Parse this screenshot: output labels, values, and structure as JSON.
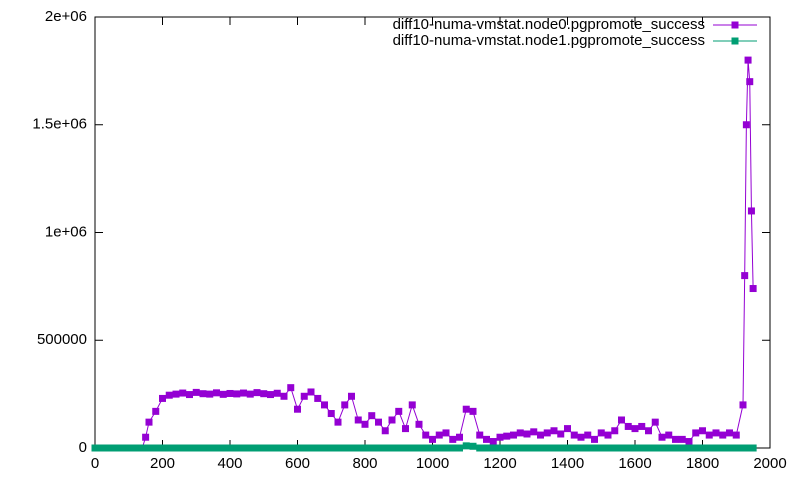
{
  "chart_data": {
    "type": "line",
    "x": [
      0,
      20,
      40,
      60,
      80,
      100,
      120,
      140,
      150,
      160,
      180,
      200,
      220,
      240,
      260,
      280,
      300,
      320,
      340,
      360,
      380,
      400,
      420,
      440,
      460,
      480,
      500,
      520,
      540,
      560,
      580,
      600,
      620,
      640,
      660,
      680,
      700,
      720,
      740,
      760,
      780,
      800,
      820,
      840,
      860,
      880,
      900,
      920,
      940,
      960,
      980,
      1000,
      1020,
      1040,
      1060,
      1080,
      1100,
      1120,
      1140,
      1160,
      1180,
      1200,
      1220,
      1240,
      1260,
      1280,
      1300,
      1320,
      1340,
      1360,
      1380,
      1400,
      1420,
      1440,
      1460,
      1480,
      1500,
      1520,
      1540,
      1560,
      1580,
      1600,
      1620,
      1640,
      1660,
      1680,
      1700,
      1720,
      1740,
      1760,
      1780,
      1800,
      1820,
      1840,
      1860,
      1880,
      1900,
      1920,
      1925,
      1930,
      1935,
      1940,
      1945,
      1950
    ],
    "series": [
      {
        "name": "diff10-numa-vmstat.node0.pgpromote_success",
        "color": "#9400d3",
        "values": [
          0,
          0,
          0,
          0,
          0,
          0,
          0,
          0,
          50000,
          120000,
          170000,
          230000,
          245000,
          250000,
          255000,
          248000,
          258000,
          252000,
          250000,
          256000,
          249000,
          253000,
          251000,
          255000,
          250000,
          257000,
          252000,
          248000,
          254000,
          240000,
          280000,
          180000,
          240000,
          260000,
          230000,
          200000,
          160000,
          120000,
          200000,
          240000,
          130000,
          110000,
          150000,
          120000,
          80000,
          130000,
          170000,
          90000,
          200000,
          110000,
          60000,
          40000,
          60000,
          70000,
          40000,
          50000,
          180000,
          170000,
          60000,
          40000,
          30000,
          50000,
          55000,
          60000,
          70000,
          65000,
          75000,
          60000,
          70000,
          80000,
          65000,
          90000,
          60000,
          50000,
          60000,
          40000,
          70000,
          60000,
          80000,
          130000,
          100000,
          90000,
          100000,
          80000,
          120000,
          50000,
          60000,
          40000,
          40000,
          30000,
          70000,
          80000,
          60000,
          70000,
          60000,
          70000,
          60000,
          200000,
          800000,
          1500000,
          1800000,
          1700000,
          1100000,
          740000
        ]
      },
      {
        "name": "diff10-numa-vmstat.node1.pgpromote_success",
        "color": "#009e73",
        "values": [
          0,
          0,
          0,
          0,
          0,
          0,
          0,
          0,
          0,
          0,
          0,
          0,
          0,
          0,
          0,
          0,
          0,
          0,
          0,
          0,
          0,
          0,
          0,
          0,
          0,
          0,
          0,
          0,
          0,
          0,
          0,
          0,
          0,
          0,
          0,
          0,
          0,
          0,
          0,
          0,
          0,
          0,
          0,
          0,
          0,
          0,
          0,
          0,
          0,
          0,
          0,
          0,
          0,
          0,
          0,
          0,
          10000,
          8000,
          0,
          0,
          0,
          0,
          0,
          0,
          0,
          0,
          0,
          0,
          0,
          0,
          0,
          0,
          0,
          0,
          0,
          0,
          0,
          0,
          0,
          0,
          0,
          0,
          0,
          0,
          0,
          0,
          0,
          0,
          0,
          0,
          0,
          0,
          0,
          0,
          0,
          0,
          0,
          0,
          0,
          0,
          0,
          0,
          0,
          0
        ]
      }
    ],
    "xlim": [
      0,
      2000
    ],
    "xticks": [
      0,
      200,
      400,
      600,
      800,
      1000,
      1200,
      1400,
      1600,
      1800,
      2000
    ],
    "ylim": [
      0,
      2000000
    ],
    "yticks": [
      0,
      500000,
      {
        "value": 1000000,
        "label": "1e+06"
      },
      {
        "value": 1500000,
        "label": "1.5e+06"
      },
      {
        "value": 2000000,
        "label": "2e+06"
      }
    ],
    "legend": "top-right"
  }
}
